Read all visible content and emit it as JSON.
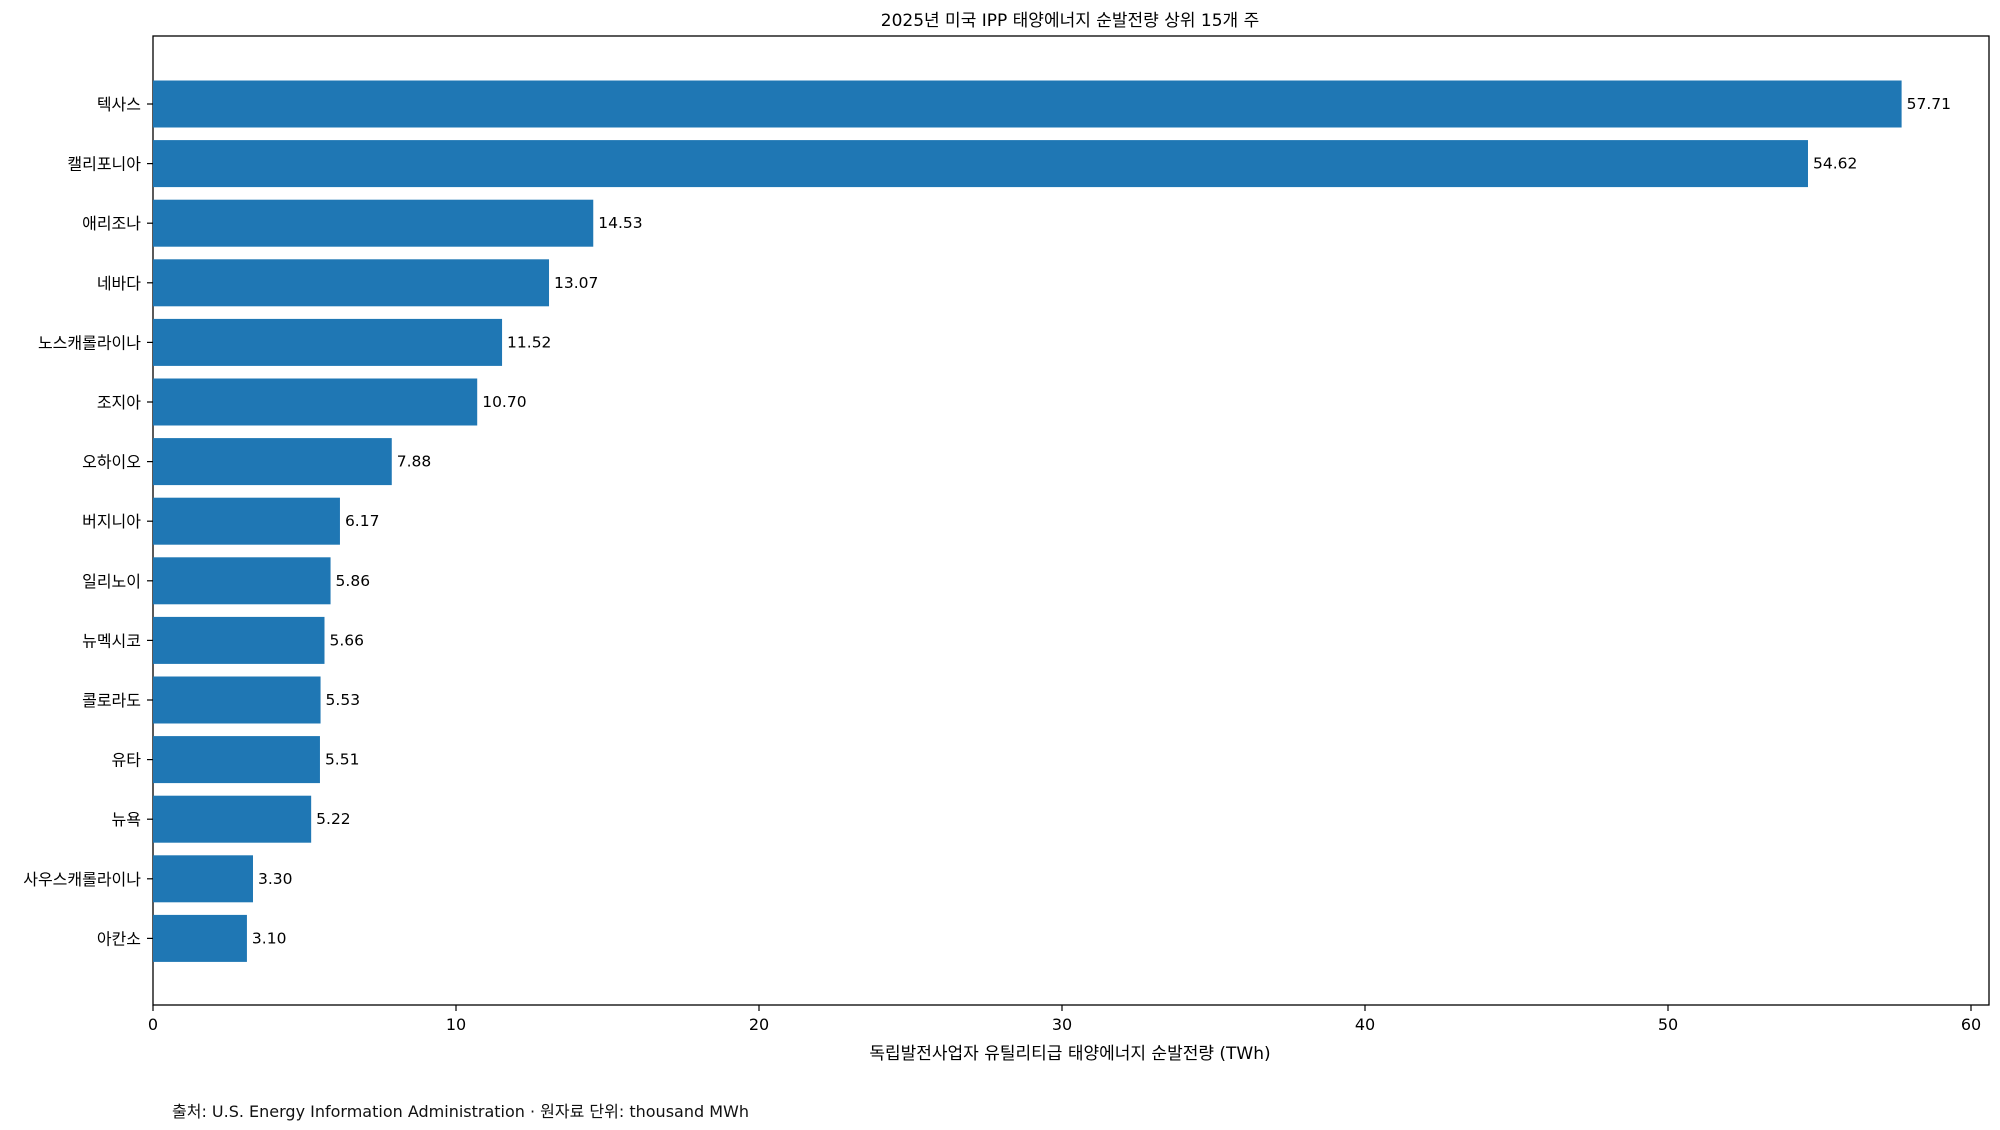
{
  "chart_data": {
    "type": "bar",
    "orientation": "horizontal",
    "title": "2025년 미국 IPP 태양에너지 순발전량 상위 15개 주",
    "xlabel": "독립발전사업자 유틸리티급 태양에너지 순발전량 (TWh)",
    "ylabel": "",
    "xlim": [
      0,
      60
    ],
    "xticks": [
      0,
      10,
      20,
      30,
      40,
      50,
      60
    ],
    "grid": false,
    "bar_color": "#1f77b4",
    "categories": [
      "텍사스",
      "캘리포니아",
      "애리조나",
      "네바다",
      "노스캐롤라이나",
      "조지아",
      "오하이오",
      "버지니아",
      "일리노이",
      "뉴멕시코",
      "콜로라도",
      "유타",
      "뉴욕",
      "사우스캐롤라이나",
      "아칸소"
    ],
    "values": [
      57.71,
      54.62,
      14.53,
      13.07,
      11.52,
      10.7,
      7.88,
      6.17,
      5.86,
      5.66,
      5.53,
      5.51,
      5.22,
      3.3,
      3.1
    ],
    "value_labels": [
      "57.71",
      "54.62",
      "14.53",
      "13.07",
      "11.52",
      "10.70",
      "7.88",
      "6.17",
      "5.86",
      "5.66",
      "5.53",
      "5.51",
      "5.22",
      "3.30",
      "3.10"
    ]
  },
  "footnote": "출처: U.S. Energy Information Administration · 원자료 단위: thousand MWh"
}
